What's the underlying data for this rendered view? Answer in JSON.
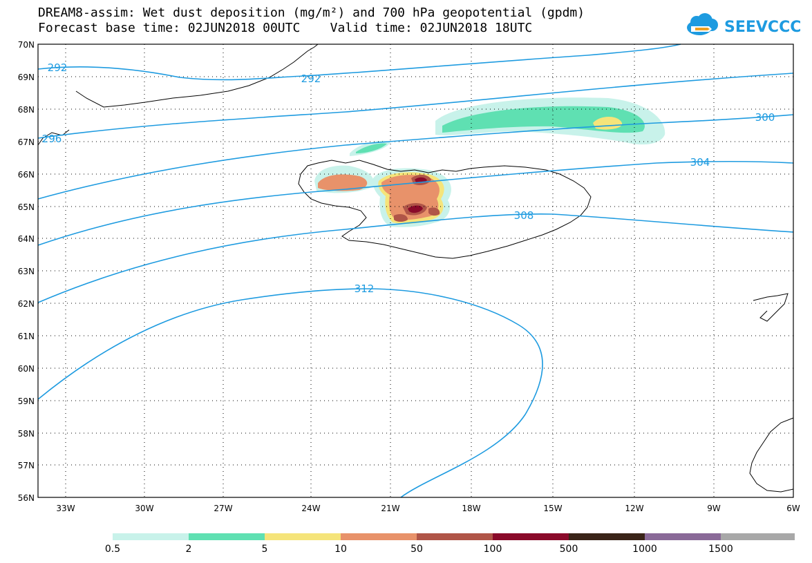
{
  "title_line1": "DREAM8-assim: Wet dust deposition (mg/m²) and 700 hPa geopotential (gpdm)",
  "title_line2": "Forecast base time: 02JUN2018 00UTC    Valid time: 02JUN2018 18UTC",
  "logo_text": "SEEVCCC",
  "logo_icon": "cloud-icon",
  "map": {
    "lat_labels": [
      "70N",
      "69N",
      "68N",
      "67N",
      "66N",
      "65N",
      "64N",
      "63N",
      "62N",
      "61N",
      "60N",
      "59N",
      "58N",
      "57N",
      "56N"
    ],
    "lon_labels": [
      "33W",
      "30W",
      "27W",
      "24W",
      "21W",
      "18W",
      "15W",
      "12W",
      "9W",
      "6W"
    ],
    "contour_labels": [
      "292",
      "292",
      "296",
      "300",
      "304",
      "308",
      "312"
    ],
    "contour_color": "#1e9be0",
    "grid": "dotted"
  },
  "colorbar": {
    "colors": [
      "#c8f2ea",
      "#5fe0b2",
      "#f5e47a",
      "#e8926a",
      "#b05548",
      "#8a0a2a",
      "#3a2418",
      "#8a6a98",
      "#a8a8a8"
    ],
    "labels": [
      "0.5",
      "2",
      "5",
      "10",
      "50",
      "100",
      "500",
      "1000",
      "1500"
    ]
  }
}
